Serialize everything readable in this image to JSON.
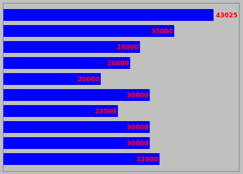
{
  "chart_data": {
    "type": "bar",
    "orientation": "horizontal",
    "categories": [
      null,
      null,
      null,
      null,
      null,
      null,
      null,
      null,
      null,
      null
    ],
    "values": [
      43025,
      35000,
      28000,
      26000,
      20000,
      30000,
      23500,
      30000,
      30000,
      32000
    ],
    "color": "#0000ff",
    "xlim": [
      0,
      48188
    ],
    "data_labels": true,
    "tick_labels": false
  }
}
